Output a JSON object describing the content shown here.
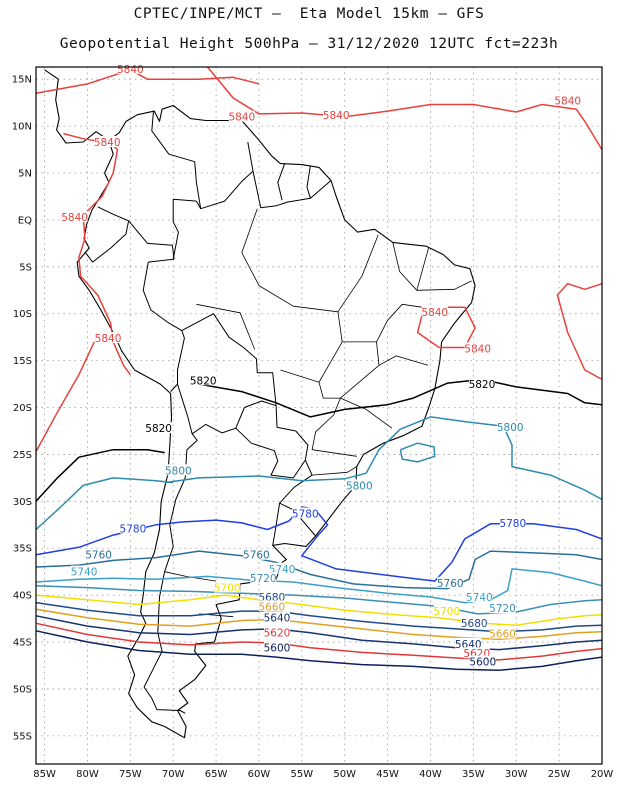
{
  "header": {
    "line1": "CPTEC/INPE/MCT –  Eta Model 15km – GFS",
    "line2": "Geopotential Height 500hPa – 31/12/2020 12UTC fct=223h"
  },
  "axes": {
    "lat_labels": [
      "15N",
      "10N",
      "5N",
      "EQ",
      "5S",
      "10S",
      "15S",
      "20S",
      "25S",
      "30S",
      "35S",
      "40S",
      "45S",
      "50S",
      "55S"
    ],
    "lon_labels": [
      "85W",
      "80W",
      "75W",
      "70W",
      "65W",
      "60W",
      "55W",
      "50W",
      "45W",
      "40W",
      "35W",
      "30W",
      "25W",
      "20W"
    ]
  },
  "contours": [
    {
      "value": "5840",
      "color": "#e8413c"
    },
    {
      "value": "5820",
      "color": "#000000"
    },
    {
      "value": "5800",
      "color": "#2f8ab0"
    },
    {
      "value": "5780",
      "color": "#1f3fe0"
    },
    {
      "value": "5760",
      "color": "#2a6f9a"
    },
    {
      "value": "5740",
      "color": "#3aa0c8"
    },
    {
      "value": "5720",
      "color": "#3a8fb8"
    },
    {
      "value": "5700",
      "color": "#f0e000"
    },
    {
      "value": "5680",
      "color": "#1e4a8c"
    },
    {
      "value": "5660",
      "color": "#e0a020"
    },
    {
      "value": "5640",
      "color": "#14346e"
    },
    {
      "value": "5620",
      "color": "#e03838"
    },
    {
      "value": "5600",
      "color": "#0c2060"
    }
  ],
  "labels": [
    {
      "text": "5840",
      "color": "#e8413c",
      "lon": -75,
      "lat": 16.0
    },
    {
      "text": "5840",
      "color": "#e8413c",
      "lon": -62,
      "lat": 10.9
    },
    {
      "text": "5840",
      "color": "#e8413c",
      "lon": -51,
      "lat": 11.1
    },
    {
      "text": "5840",
      "color": "#e8413c",
      "lon": -24,
      "lat": 12.6
    },
    {
      "text": "5840",
      "color": "#e8413c",
      "lon": -77.7,
      "lat": 8.2
    },
    {
      "text": "5840",
      "color": "#e8413c",
      "lon": -81.5,
      "lat": 0.2
    },
    {
      "text": "5840",
      "color": "#e8413c",
      "lon": -77.6,
      "lat": -12.7
    },
    {
      "text": "5840",
      "color": "#e8413c",
      "lon": -39.5,
      "lat": -9.9
    },
    {
      "text": "5840",
      "color": "#e8413c",
      "lon": -34.5,
      "lat": -13.8
    },
    {
      "text": "5820",
      "color": "#000000",
      "lon": -66.5,
      "lat": -17.2
    },
    {
      "text": "5820",
      "color": "#000000",
      "lon": -34,
      "lat": -17.6
    },
    {
      "text": "5820",
      "color": "#000000",
      "lon": -71.7,
      "lat": -22.3
    },
    {
      "text": "5800",
      "color": "#2f8ab0",
      "lon": -30.7,
      "lat": -22.2
    },
    {
      "text": "5800",
      "color": "#2f8ab0",
      "lon": -69.4,
      "lat": -26.8
    },
    {
      "text": "5800",
      "color": "#2f8ab0",
      "lon": -48.3,
      "lat": -28.4
    },
    {
      "text": "5780",
      "color": "#1f3fe0",
      "lon": -74.7,
      "lat": -33.0
    },
    {
      "text": "5780",
      "color": "#1f3fe0",
      "lon": -54.6,
      "lat": -31.4
    },
    {
      "text": "5780",
      "color": "#1f3fe0",
      "lon": -30.4,
      "lat": -32.4
    },
    {
      "text": "5760",
      "color": "#2a6f9a",
      "lon": -78.7,
      "lat": -35.8
    },
    {
      "text": "5760",
      "color": "#2a6f9a",
      "lon": -60.3,
      "lat": -35.8
    },
    {
      "text": "5760",
      "color": "#2a6f9a",
      "lon": -37.7,
      "lat": -38.8
    },
    {
      "text": "5740",
      "color": "#3aa0c8",
      "lon": -80.4,
      "lat": -37.6
    },
    {
      "text": "5740",
      "color": "#3aa0c8",
      "lon": -57.3,
      "lat": -37.3
    },
    {
      "text": "5740",
      "color": "#3aa0c8",
      "lon": -34.3,
      "lat": -40.3
    },
    {
      "text": "5720",
      "color": "#3a8fb8",
      "lon": -59.5,
      "lat": -38.3
    },
    {
      "text": "5720",
      "color": "#3a8fb8",
      "lon": -31.6,
      "lat": -41.5
    },
    {
      "text": "5700",
      "color": "#f0e000",
      "lon": -63.7,
      "lat": -39.3
    },
    {
      "text": "5700",
      "color": "#f0e000",
      "lon": -38.1,
      "lat": -41.8
    },
    {
      "text": "5680",
      "color": "#1e4a8c",
      "lon": -58.5,
      "lat": -40.3
    },
    {
      "text": "5680",
      "color": "#1e4a8c",
      "lon": -34.9,
      "lat": -43.1
    },
    {
      "text": "5660",
      "color": "#e0a020",
      "lon": -58.5,
      "lat": -41.3
    },
    {
      "text": "5660",
      "color": "#e0a020",
      "lon": -31.6,
      "lat": -44.2
    },
    {
      "text": "5640",
      "color": "#14346e",
      "lon": -57.9,
      "lat": -42.5
    },
    {
      "text": "5640",
      "color": "#14346e",
      "lon": -35.6,
      "lat": -45.3
    },
    {
      "text": "5620",
      "color": "#e03838",
      "lon": -57.9,
      "lat": -44.1
    },
    {
      "text": "5620",
      "color": "#e03838",
      "lon": -34.6,
      "lat": -46.3
    },
    {
      "text": "5600",
      "color": "#0c2060",
      "lon": -57.9,
      "lat": -45.7
    },
    {
      "text": "5600",
      "color": "#0c2060",
      "lon": -33.9,
      "lat": -47.2
    }
  ]
}
